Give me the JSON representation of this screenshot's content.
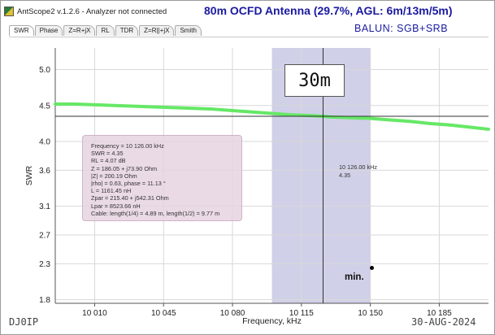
{
  "window": {
    "app_title": "AntScope2 v.1.2.6 - Analyzer not connected",
    "app_icon": "antscope-app-icon"
  },
  "header": {
    "heading": "80m OCFD Antenna (29.7%, AGL: 6m/13m/5m)",
    "balun": "BALUN:  SGB+SRB"
  },
  "tabs": [
    {
      "label": "SWR",
      "active": true
    },
    {
      "label": "Phase",
      "active": false
    },
    {
      "label": "Z=R+jX",
      "active": false
    },
    {
      "label": "RL",
      "active": false
    },
    {
      "label": "TDR",
      "active": false
    },
    {
      "label": "Z=R||+jX",
      "active": false
    },
    {
      "label": "Smith",
      "active": false
    }
  ],
  "overlay": {
    "band_label": "30m",
    "min_label": "min.",
    "info_lines": [
      "Frequency = 10 126.00 kHz",
      "SWR = 4.35",
      "RL = 4.07 dB",
      "Z = 186.05 + j73.90 Ohm",
      "|Z| = 200.19 Ohm",
      "|rho| = 0.63, phase = 11.13 °",
      "L = 1161.45 nH",
      "Zpar = 215.40 + j542.31 Ohm",
      "Lpar = 8523.66 nH",
      "Cable: length(1/4) = 4.89 m, length(1/2) = 9.77 m"
    ],
    "cursor_frequency": "10 126.00 kHz",
    "cursor_swr": "4.35"
  },
  "footer": {
    "callsign": "DJ0IP",
    "date": "30-AUG-2024"
  },
  "colors": {
    "swr_curve": "#66e866",
    "band_shade": "#c8c8e4",
    "info_box_bg": "#e6d4e2",
    "heading_text": "#1a1aa0",
    "grid": "#d8d8d8"
  },
  "chart_data": {
    "type": "line",
    "title": "",
    "xlabel": "Frequency, kHz",
    "ylabel": "SWR",
    "xlim": [
      9990,
      10210
    ],
    "ylim": [
      1.75,
      5.3
    ],
    "x_ticks": [
      10010,
      10045,
      10080,
      10115,
      10150,
      10185
    ],
    "x_tick_labels": [
      "10 010",
      "10 045",
      "10 080",
      "10 115",
      "10 150",
      "10 185"
    ],
    "y_ticks": [
      1.8,
      2.3,
      2.7,
      3.1,
      3.6,
      4.0,
      4.5,
      5.0
    ],
    "y_tick_labels": [
      "1.8",
      "2.3",
      "2.7",
      "3.1",
      "3.6",
      "4.0",
      "4.5",
      "5.0"
    ],
    "band_span": [
      10100,
      10150
    ],
    "cursor": {
      "x": 10126,
      "y": 4.35
    },
    "series": [
      {
        "x": [
          9990,
          10000,
          10010,
          10020,
          10030,
          10040,
          10050,
          10060,
          10070,
          10080,
          10090,
          10100,
          10110,
          10120,
          10126,
          10130,
          10140,
          10150,
          10160,
          10170,
          10180,
          10190,
          10200,
          10210
        ],
        "values": [
          4.52,
          4.52,
          4.51,
          4.5,
          4.49,
          4.48,
          4.47,
          4.46,
          4.45,
          4.43,
          4.41,
          4.39,
          4.37,
          4.36,
          4.35,
          4.34,
          4.33,
          4.32,
          4.3,
          4.28,
          4.25,
          4.23,
          4.2,
          4.17
        ]
      }
    ],
    "grid": true,
    "legend": "none"
  }
}
